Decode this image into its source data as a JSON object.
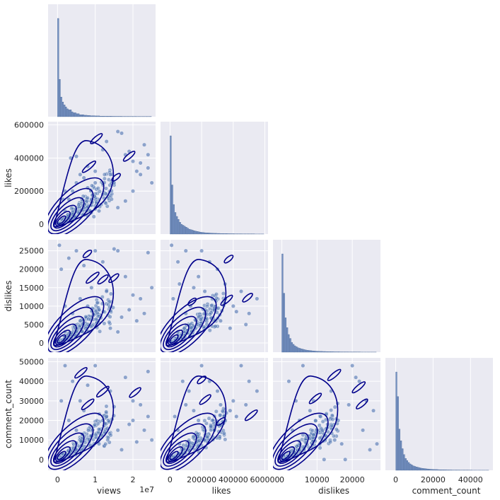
{
  "chart_data": {
    "type": "scatter",
    "kind": "pairplot-corner",
    "variables": [
      "views",
      "likes",
      "dislikes",
      "comment_count"
    ],
    "upper_triangle": "hidden",
    "diagonal": "histogram",
    "lower_triangle": "scatter with kde contours",
    "scatter_color": "#4c72b0",
    "contour_color": "#00008b",
    "hist_color": "#4c72b0",
    "background_color": "#eaeaf2",
    "axes": {
      "views": {
        "label": "views",
        "range": [
          -2500000,
          26000000
        ],
        "ticks": [
          0,
          10000000,
          20000000
        ],
        "tick_labels": [
          "0",
          "1",
          "2"
        ],
        "offset_text": "1e7"
      },
      "likes": {
        "label": "likes",
        "range": [
          -60000,
          620000
        ],
        "ticks": [
          0,
          200000,
          400000,
          600000
        ],
        "tick_labels": [
          "0",
          "200000",
          "400000",
          "600000"
        ]
      },
      "dislikes": {
        "label": "dislikes",
        "range": [
          -2500,
          28000
        ],
        "ticks": [
          0,
          5000,
          10000,
          15000,
          20000,
          25000
        ],
        "tick_labels": [
          "0",
          "5000",
          "10000",
          "15000",
          "20000",
          "25000"
        ],
        "tick_labels_x": [
          "0",
          "10000",
          "20000"
        ],
        "ticks_x": [
          0,
          10000,
          20000
        ]
      },
      "comment_count": {
        "label": "comment_count",
        "range": [
          -5500,
          52000
        ],
        "ticks": [
          0,
          10000,
          20000,
          30000,
          40000,
          50000
        ],
        "tick_labels": [
          "0",
          "10000",
          "20000",
          "30000",
          "40000",
          "50000"
        ],
        "tick_labels_x": [
          "0",
          "20000",
          "40000"
        ],
        "ticks_x": [
          0,
          20000,
          40000
        ]
      }
    },
    "histograms": {
      "views": [
        1.0,
        0.38,
        0.2,
        0.15,
        0.12,
        0.1,
        0.08,
        0.07,
        0.07,
        0.05,
        0.04,
        0.04,
        0.03,
        0.03,
        0.02,
        0.02,
        0.02,
        0.015,
        0.015,
        0.012,
        0.012,
        0.01,
        0.01,
        0.01,
        0.008,
        0.008,
        0.008,
        0.006,
        0.006,
        0.006,
        0.005,
        0.005,
        0.005,
        0.005,
        0.005,
        0.004,
        0.004,
        0.004,
        0.004,
        0.004,
        0.004,
        0.003,
        0.003,
        0.003,
        0.003,
        0.003,
        0.003,
        0.003,
        0.003,
        0.003,
        0.002,
        0.002,
        0.002,
        0.002,
        0.002,
        0.002,
        0.002,
        0.002,
        0.002,
        0.002
      ],
      "likes": [
        1.0,
        0.5,
        0.3,
        0.22,
        0.18,
        0.15,
        0.12,
        0.1,
        0.09,
        0.08,
        0.07,
        0.06,
        0.05,
        0.045,
        0.04,
        0.035,
        0.03,
        0.027,
        0.024,
        0.02,
        0.018,
        0.016,
        0.014,
        0.013,
        0.012,
        0.011,
        0.01,
        0.009,
        0.008,
        0.008,
        0.007,
        0.007,
        0.006,
        0.006,
        0.005,
        0.005,
        0.005,
        0.004,
        0.004,
        0.004,
        0.004,
        0.003,
        0.003,
        0.003,
        0.003,
        0.003,
        0.002,
        0.002,
        0.002,
        0.002,
        0.002,
        0.002,
        0.002,
        0.002,
        0.001,
        0.001,
        0.001,
        0.001,
        0.001,
        0.001
      ],
      "dislikes": [
        1.0,
        0.6,
        0.35,
        0.25,
        0.18,
        0.14,
        0.1,
        0.08,
        0.065,
        0.055,
        0.045,
        0.04,
        0.035,
        0.03,
        0.026,
        0.022,
        0.02,
        0.018,
        0.016,
        0.014,
        0.012,
        0.011,
        0.01,
        0.009,
        0.008,
        0.008,
        0.007,
        0.007,
        0.006,
        0.006,
        0.005,
        0.005,
        0.005,
        0.004,
        0.004,
        0.004,
        0.004,
        0.003,
        0.003,
        0.003,
        0.003,
        0.003,
        0.002,
        0.002,
        0.002,
        0.002,
        0.002,
        0.002,
        0.002,
        0.002,
        0.001,
        0.001,
        0.001,
        0.001,
        0.001,
        0.001,
        0.001,
        0.001,
        0.001,
        0.001
      ],
      "comment_count": [
        1.0,
        0.75,
        0.42,
        0.3,
        0.22,
        0.16,
        0.12,
        0.1,
        0.08,
        0.065,
        0.055,
        0.045,
        0.04,
        0.035,
        0.03,
        0.026,
        0.022,
        0.02,
        0.018,
        0.016,
        0.014,
        0.012,
        0.011,
        0.01,
        0.009,
        0.008,
        0.008,
        0.007,
        0.006,
        0.006,
        0.005,
        0.005,
        0.005,
        0.004,
        0.004,
        0.004,
        0.003,
        0.003,
        0.003,
        0.003,
        0.003,
        0.002,
        0.002,
        0.002,
        0.002,
        0.002,
        0.002,
        0.002,
        0.002,
        0.001,
        0.001,
        0.001,
        0.001,
        0.001,
        0.001,
        0.001,
        0.001,
        0.001,
        0.001,
        0.001
      ]
    },
    "scatter_points": {
      "likes_vs_views": [
        [
          300000.0,
          2000
        ],
        [
          1000000.0,
          30000
        ],
        [
          2000000.0,
          80000
        ],
        [
          3000000.0,
          150000
        ],
        [
          4000000.0,
          200000
        ],
        [
          5000000.0,
          250000
        ],
        [
          3500000.0,
          400000
        ],
        [
          5000000.0,
          410000
        ],
        [
          6000000.0,
          300000
        ],
        [
          7000000.0,
          280000
        ],
        [
          8000000.0,
          350000
        ],
        [
          9000000.0,
          150000
        ],
        [
          10000000.0,
          320000
        ],
        [
          12000000.0,
          450000
        ],
        [
          13000000.0,
          500000
        ],
        [
          14000000.0,
          300000
        ],
        [
          15000000.0,
          250000
        ],
        [
          16000000.0,
          560000
        ],
        [
          17000000.0,
          550000
        ],
        [
          18000000.0,
          420000
        ],
        [
          19000000.0,
          440000
        ],
        [
          20000000.0,
          380000
        ],
        [
          21000000.0,
          320000
        ],
        [
          22000000.0,
          300000
        ],
        [
          23000000.0,
          480000
        ],
        [
          24000000.0,
          420000
        ],
        [
          25000000.0,
          250000
        ],
        [
          16000000.0,
          100000
        ],
        [
          18000000.0,
          140000
        ],
        [
          11000000.0,
          80000
        ],
        [
          7000000.0,
          100000
        ],
        [
          4000000.0,
          60000
        ],
        [
          2000000.0,
          200000
        ],
        [
          1500000.0,
          150000
        ],
        [
          8000000.0,
          220000
        ],
        [
          20000000.0,
          200000
        ],
        [
          22000000.0,
          370000
        ],
        [
          24000000.0,
          340000
        ],
        [
          10000000.0,
          250000
        ],
        [
          12000000.0,
          180000
        ]
      ],
      "dislikes_vs_views": [
        [
          500000.0,
          26500
        ],
        [
          300000.0,
          500
        ],
        [
          2000000.0,
          3000
        ],
        [
          4000000.0,
          8000
        ],
        [
          6000000.0,
          12000
        ],
        [
          8000000.0,
          10000
        ],
        [
          10000000.0,
          25000
        ],
        [
          12000000.0,
          22000
        ],
        [
          15000000.0,
          25500
        ],
        [
          16000000.0,
          25000
        ],
        [
          18000000.0,
          18000
        ],
        [
          20000000.0,
          13000
        ],
        [
          22000000.0,
          12000
        ],
        [
          24000000.0,
          24500
        ],
        [
          25000000.0,
          15000
        ],
        [
          3000000.0,
          23000
        ],
        [
          1000000.0,
          20000
        ],
        [
          5000000.0,
          25000
        ],
        [
          7000000.0,
          21000
        ],
        [
          9000000.0,
          15000
        ],
        [
          11000000.0,
          9000
        ],
        [
          13000000.0,
          14000
        ],
        [
          17000000.0,
          7000
        ],
        [
          19000000.0,
          9000
        ],
        [
          21000000.0,
          6000
        ],
        [
          23000000.0,
          8000
        ],
        [
          14000000.0,
          4000
        ],
        [
          16000000.0,
          3000
        ],
        [
          6000000.0,
          6000
        ],
        [
          2000000.0,
          10000
        ]
      ],
      "dislikes_vs_likes": [
        [
          10000,
          26500
        ],
        [
          2000,
          500
        ],
        [
          50000,
          3000
        ],
        [
          100000,
          8000
        ],
        [
          150000,
          15000
        ],
        [
          200000,
          25000
        ],
        [
          250000,
          22000
        ],
        [
          300000,
          20000
        ],
        [
          350000,
          12000
        ],
        [
          400000,
          10000
        ],
        [
          450000,
          14000
        ],
        [
          500000,
          8000
        ],
        [
          550000,
          12000
        ],
        [
          50000,
          22000
        ],
        [
          100000,
          25000
        ],
        [
          180000,
          18000
        ],
        [
          220000,
          14000
        ],
        [
          280000,
          9000
        ],
        [
          320000,
          6000
        ],
        [
          380000,
          4000
        ],
        [
          420000,
          8500
        ],
        [
          480000,
          5000
        ],
        [
          20000,
          12000
        ],
        [
          60000,
          16000
        ],
        [
          130000,
          10000
        ]
      ],
      "comment_vs_views": [
        [
          500000.0,
          2000
        ],
        [
          2000000.0,
          48000
        ],
        [
          4000000.0,
          40000
        ],
        [
          6000000.0,
          30000
        ],
        [
          8000000.0,
          38000
        ],
        [
          10000000.0,
          48000
        ],
        [
          12000000.0,
          20000
        ],
        [
          14000000.0,
          35000
        ],
        [
          16000000.0,
          15000
        ],
        [
          18000000.0,
          42000
        ],
        [
          20000000.0,
          30000
        ],
        [
          22000000.0,
          28000
        ],
        [
          24000000.0,
          45000
        ],
        [
          25000000.0,
          10000
        ],
        [
          1000000.0,
          30000
        ],
        [
          3000000.0,
          20000
        ],
        [
          5000000.0,
          15000
        ],
        [
          7000000.0,
          25000
        ],
        [
          9000000.0,
          12000
        ],
        [
          11000000.0,
          8000
        ],
        [
          13000000.0,
          22000
        ],
        [
          15000000.0,
          27000
        ],
        [
          17000000.0,
          5000
        ],
        [
          19000000.0,
          18000
        ],
        [
          21000000.0,
          9000
        ],
        [
          23000000.0,
          15000
        ],
        [
          24000000.0,
          22000
        ],
        [
          20000000.0,
          20000
        ]
      ],
      "comment_vs_likes": [
        [
          10000,
          2000
        ],
        [
          50000,
          15000
        ],
        [
          100000,
          28000
        ],
        [
          150000,
          25000
        ],
        [
          200000,
          48000
        ],
        [
          250000,
          40000
        ],
        [
          300000,
          35000
        ],
        [
          350000,
          20000
        ],
        [
          400000,
          30000
        ],
        [
          450000,
          48000
        ],
        [
          500000,
          40000
        ],
        [
          550000,
          35000
        ],
        [
          80000,
          40000
        ],
        [
          120000,
          35000
        ],
        [
          180000,
          20000
        ],
        [
          220000,
          10000
        ],
        [
          280000,
          15000
        ],
        [
          320000,
          28000
        ],
        [
          380000,
          25000
        ],
        [
          420000,
          22000
        ],
        [
          480000,
          28000
        ],
        [
          30000,
          22000
        ],
        [
          60000,
          8000
        ]
      ],
      "comment_vs_dislikes": [
        [
          500,
          2000
        ],
        [
          2000,
          40000
        ],
        [
          4000,
          30000
        ],
        [
          6000,
          48000
        ],
        [
          8000,
          25000
        ],
        [
          10000,
          15000
        ],
        [
          12000,
          0
        ],
        [
          14000,
          35000
        ],
        [
          16000,
          20000
        ],
        [
          18000,
          0
        ],
        [
          20000,
          48000
        ],
        [
          22000,
          40000
        ],
        [
          24000,
          30000
        ],
        [
          26000,
          25000
        ],
        [
          27000,
          8000
        ],
        [
          3000,
          15000
        ],
        [
          5000,
          20000
        ],
        [
          7000,
          12000
        ],
        [
          9000,
          30000
        ],
        [
          11000,
          22000
        ],
        [
          13000,
          18000
        ],
        [
          15000,
          10000
        ],
        [
          17000,
          8000
        ],
        [
          19000,
          28000
        ],
        [
          21000,
          42000
        ],
        [
          23000,
          15000
        ],
        [
          25000,
          5000
        ]
      ]
    }
  }
}
